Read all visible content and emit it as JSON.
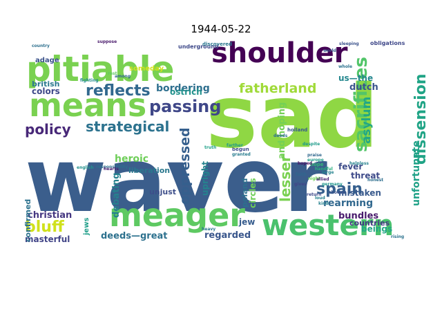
{
  "title": "1944-05-22",
  "words": [
    {
      "text": "waver",
      "color": "#3b5e8c"
    },
    {
      "text": "sad",
      "color": "#8fd744"
    },
    {
      "text": "pitiable",
      "color": "#7ad151"
    },
    {
      "text": "shoulder",
      "color": "#440154"
    },
    {
      "text": "means",
      "color": "#7ad151"
    },
    {
      "text": "meager",
      "color": "#5ec962"
    },
    {
      "text": "western",
      "color": "#4ac16d"
    },
    {
      "text": "reflects",
      "color": "#31688e"
    },
    {
      "text": "passing",
      "color": "#3f4788"
    },
    {
      "text": "strategical",
      "color": "#2c728e"
    },
    {
      "text": "policy",
      "color": "#482878"
    },
    {
      "text": "fatherland",
      "color": "#a0da39"
    },
    {
      "text": "sacrifices",
      "color": "#52c569"
    },
    {
      "text": "dissension",
      "color": "#20a486"
    },
    {
      "text": "spain",
      "color": "#355f8d"
    },
    {
      "text": "bluff",
      "color": "#d0e11c"
    },
    {
      "text": "oppressed",
      "color": "#355f8d"
    },
    {
      "text": "lesser",
      "color": "#7ad151"
    },
    {
      "text": "asylum",
      "color": "#22a785"
    },
    {
      "text": "heroic",
      "color": "#6ece58"
    },
    {
      "text": "rearming",
      "color": "#31688e"
    },
    {
      "text": "unfortunate",
      "color": "#1fa187"
    },
    {
      "text": "christian",
      "color": "#453781"
    },
    {
      "text": "british",
      "color": "#2a788e"
    },
    {
      "text": "colors",
      "color": "#3e4989"
    },
    {
      "text": "bordering",
      "color": "#2e6f8e"
    },
    {
      "text": "ostrich",
      "color": "#21918c"
    },
    {
      "text": "dutch",
      "color": "#3a548c"
    },
    {
      "text": "us—the",
      "color": "#24878e"
    },
    {
      "text": "and hoping",
      "color": "#73d056"
    },
    {
      "text": "circles",
      "color": "#6ece58"
    },
    {
      "text": "upright",
      "color": "#25838e"
    },
    {
      "text": "debating",
      "color": "#26818e"
    },
    {
      "text": "deeds—great",
      "color": "#2d718e"
    },
    {
      "text": "masterful",
      "color": "#414487"
    },
    {
      "text": "regarded",
      "color": "#39568c"
    },
    {
      "text": "mistaken",
      "color": "#38598c"
    },
    {
      "text": "threat",
      "color": "#3e4a89"
    },
    {
      "text": "bundles",
      "color": "#481a6c"
    },
    {
      "text": "beings",
      "color": "#22a884"
    },
    {
      "text": "fever",
      "color": "#3d4d8a"
    },
    {
      "text": "jew",
      "color": "#365c8d"
    },
    {
      "text": "poland",
      "color": "#2d708e"
    },
    {
      "text": "liberation",
      "color": "#2a788e"
    },
    {
      "text": "unjust",
      "color": "#3d4e8a"
    },
    {
      "text": "countries",
      "color": "#443a83"
    },
    {
      "text": "confirmed",
      "color": "#2c728e"
    },
    {
      "text": "adage",
      "color": "#3b528b"
    },
    {
      "text": "someday",
      "color": "#d2e21b"
    },
    {
      "text": "jews",
      "color": "#1f9e89"
    },
    {
      "text": "underground",
      "color": "#3e4989"
    },
    {
      "text": "discovered",
      "color": "#2a768e"
    },
    {
      "text": "obligations",
      "color": "#3f4889"
    },
    {
      "text": "begun",
      "color": "#3e4c8a"
    },
    {
      "text": "holland",
      "color": "#375a8c"
    },
    {
      "text": "faith",
      "color": "#31678e"
    },
    {
      "text": "responsibility",
      "color": "#2d708e"
    },
    {
      "text": "english",
      "color": "#21918c"
    },
    {
      "text": "heavy",
      "color": "#2a768e"
    },
    {
      "text": "hearts",
      "color": "#482071"
    },
    {
      "text": "despite",
      "color": "#1e9b8a"
    },
    {
      "text": "fighting",
      "color": "#228c8d"
    },
    {
      "text": "handful",
      "color": "#29af7f"
    },
    {
      "text": "suppose",
      "color": "#48186a"
    },
    {
      "text": "deeds",
      "color": "#2e6e8e"
    },
    {
      "text": "granted",
      "color": "#287c8e"
    },
    {
      "text": "hope",
      "color": "#35b779"
    },
    {
      "text": "germany",
      "color": "#1f968b"
    },
    {
      "text": "return",
      "color": "#3e4989"
    },
    {
      "text": "kind",
      "color": "#26818e"
    },
    {
      "text": "praise",
      "color": "#31688e"
    },
    {
      "text": "europe",
      "color": "#1e9b8a"
    },
    {
      "text": "honest",
      "color": "#2e6e8e"
    },
    {
      "text": "sleeping",
      "color": "#3b528b"
    },
    {
      "text": "world",
      "color": "#38588c"
    },
    {
      "text": "whole",
      "color": "#2c728e"
    },
    {
      "text": "rest",
      "color": "#5ec962"
    },
    {
      "text": "night",
      "color": "#6ece58"
    },
    {
      "text": "among",
      "color": "#31688e"
    },
    {
      "text": "gives",
      "color": "#414487"
    },
    {
      "text": "hoped",
      "color": "#471063"
    },
    {
      "text": "large",
      "color": "#25838e"
    },
    {
      "text": "allied",
      "color": "#482576"
    },
    {
      "text": "farther",
      "color": "#1f9a8a"
    },
    {
      "text": "country",
      "color": "#2d708e"
    },
    {
      "text": "choose",
      "color": "#3b528b"
    },
    {
      "text": "helpless",
      "color": "#26828e"
    },
    {
      "text": "loud",
      "color": "#26818e"
    },
    {
      "text": "rising",
      "color": "#2c728e"
    },
    {
      "text": "truth",
      "color": "#1fa088"
    }
  ]
}
